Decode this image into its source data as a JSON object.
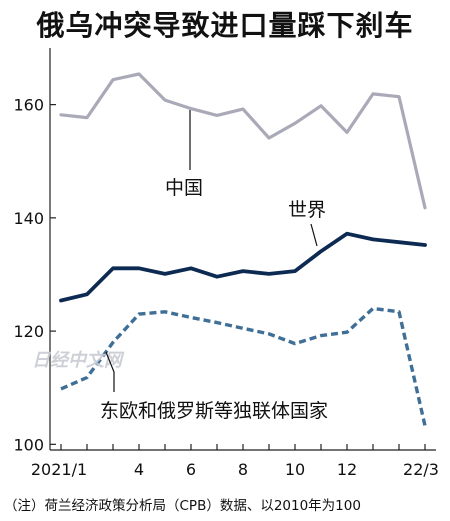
{
  "chart_data": {
    "type": "line",
    "title": "俄乌冲突导致进口量踩下刹车",
    "x": [
      "2021/1",
      "2021/2",
      "2021/3",
      "2021/4",
      "2021/5",
      "2021/6",
      "2021/7",
      "2021/8",
      "2021/9",
      "2021/10",
      "2021/11",
      "2021/12",
      "2022/1",
      "2022/2",
      "2022/3"
    ],
    "xticks": [
      "2021/1",
      "4",
      "6",
      "8",
      "10",
      "12",
      "22/3"
    ],
    "ylim": [
      99,
      170
    ],
    "yticks": [
      100,
      120,
      140,
      160
    ],
    "grid": false,
    "series": [
      {
        "name": "中国",
        "color": "#a9a9b8",
        "dash": false,
        "values": [
          158.2,
          157.7,
          164.4,
          165.4,
          160.8,
          159.3,
          158.1,
          159.2,
          154.1,
          156.7,
          159.8,
          155.1,
          161.9,
          161.4,
          141.8
        ]
      },
      {
        "name": "世界",
        "color": "#0d2a52",
        "dash": false,
        "values": [
          125.4,
          126.5,
          131.1,
          131.1,
          130.1,
          131.1,
          129.6,
          130.6,
          130.1,
          130.6,
          134.1,
          137.2,
          136.2,
          135.7,
          135.2
        ]
      },
      {
        "name": "东欧和俄罗斯等独联体国家",
        "color": "#3f6f96",
        "dash": true,
        "values": [
          109.8,
          111.8,
          118.0,
          123.0,
          123.4,
          122.4,
          121.5,
          120.5,
          119.5,
          117.8,
          119.2,
          119.8,
          124.0,
          123.4,
          103.3
        ]
      }
    ]
  },
  "watermark": "日经中文网",
  "footnote": "（注）荷兰经济政策分析局（CPB）数据、以2010年为100"
}
